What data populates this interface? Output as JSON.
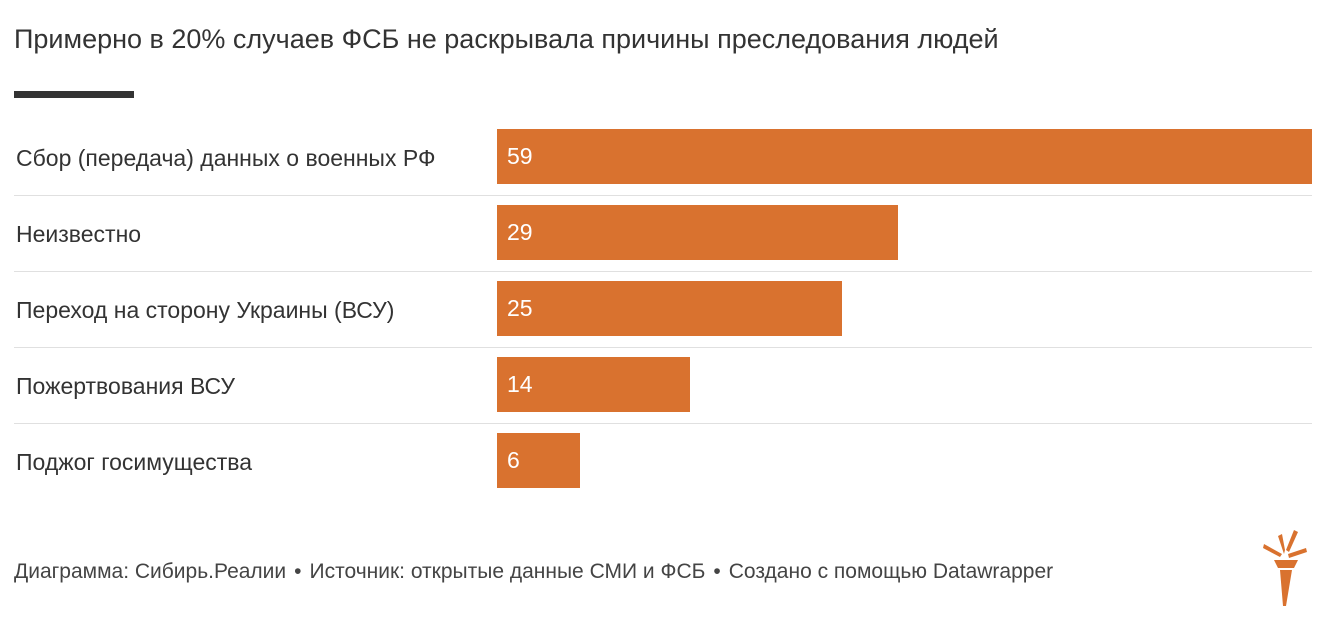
{
  "title": "Примерно в 20% случаев ФСБ не раскрывала причины преследования людей",
  "colors": {
    "bar": "#d9722f",
    "text": "#333333",
    "rule": "#333333",
    "logo": "#d9722f"
  },
  "chart_data": {
    "type": "bar",
    "orientation": "horizontal",
    "title": "Примерно в 20% случаев ФСБ не раскрывала причины преследования людей",
    "categories": [
      "Сбор (передача) данных о военных РФ",
      "Неизвестно",
      "Переход на сторону Украины (ВСУ)",
      "Пожертвования ВСУ",
      "Поджог госимущества"
    ],
    "values": [
      59,
      29,
      25,
      14,
      6
    ],
    "value_labels": [
      "59",
      "29",
      "25",
      "14",
      "6"
    ],
    "xlim": [
      0,
      59
    ],
    "grid": false
  },
  "footer": {
    "credit": "Диаграмма: Сибирь.Реалии",
    "source": "Источник: открытые данные СМИ и ФСБ",
    "made_with": "Создано с помощью Datawrapper",
    "separator": "•"
  },
  "logo_icon": "torch-icon"
}
